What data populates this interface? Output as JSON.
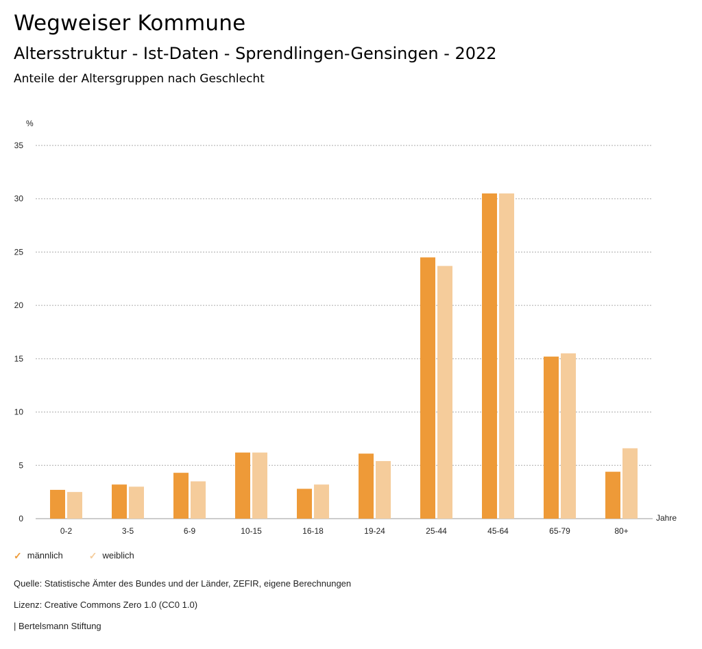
{
  "header": {
    "title": "Wegweiser Kommune",
    "subtitle": "Altersstruktur - Ist-Daten - Sprendlingen-Gensingen - 2022",
    "chart_heading": "Anteile der Altersgruppen nach Geschlecht"
  },
  "chart_data": {
    "type": "bar",
    "ylabel": "%",
    "xlabel": "Jahre",
    "ylim": [
      0,
      35
    ],
    "yticks": [
      0,
      5,
      10,
      15,
      20,
      25,
      30,
      35
    ],
    "grid": true,
    "legend_placement": "bottom-left",
    "categories": [
      "0-2",
      "3-5",
      "6-9",
      "10-15",
      "16-18",
      "19-24",
      "25-44",
      "45-64",
      "65-79",
      "80+"
    ],
    "series": [
      {
        "name": "männlich",
        "color": "#ee9a38",
        "values": [
          2.7,
          3.2,
          4.3,
          6.2,
          2.8,
          6.1,
          24.5,
          30.5,
          15.2,
          4.4
        ]
      },
      {
        "name": "weiblich",
        "color": "#f5cc9b",
        "values": [
          2.5,
          3.0,
          3.5,
          6.2,
          3.2,
          5.4,
          23.7,
          30.5,
          15.5,
          6.6
        ]
      }
    ]
  },
  "footer": {
    "source": "Quelle: Statistische Ämter des Bundes und der Länder, ZEFIR, eigene Berechnungen",
    "license": "Lizenz: Creative Commons Zero 1.0 (CC0 1.0)",
    "credit": "| Bertelsmann Stiftung"
  }
}
